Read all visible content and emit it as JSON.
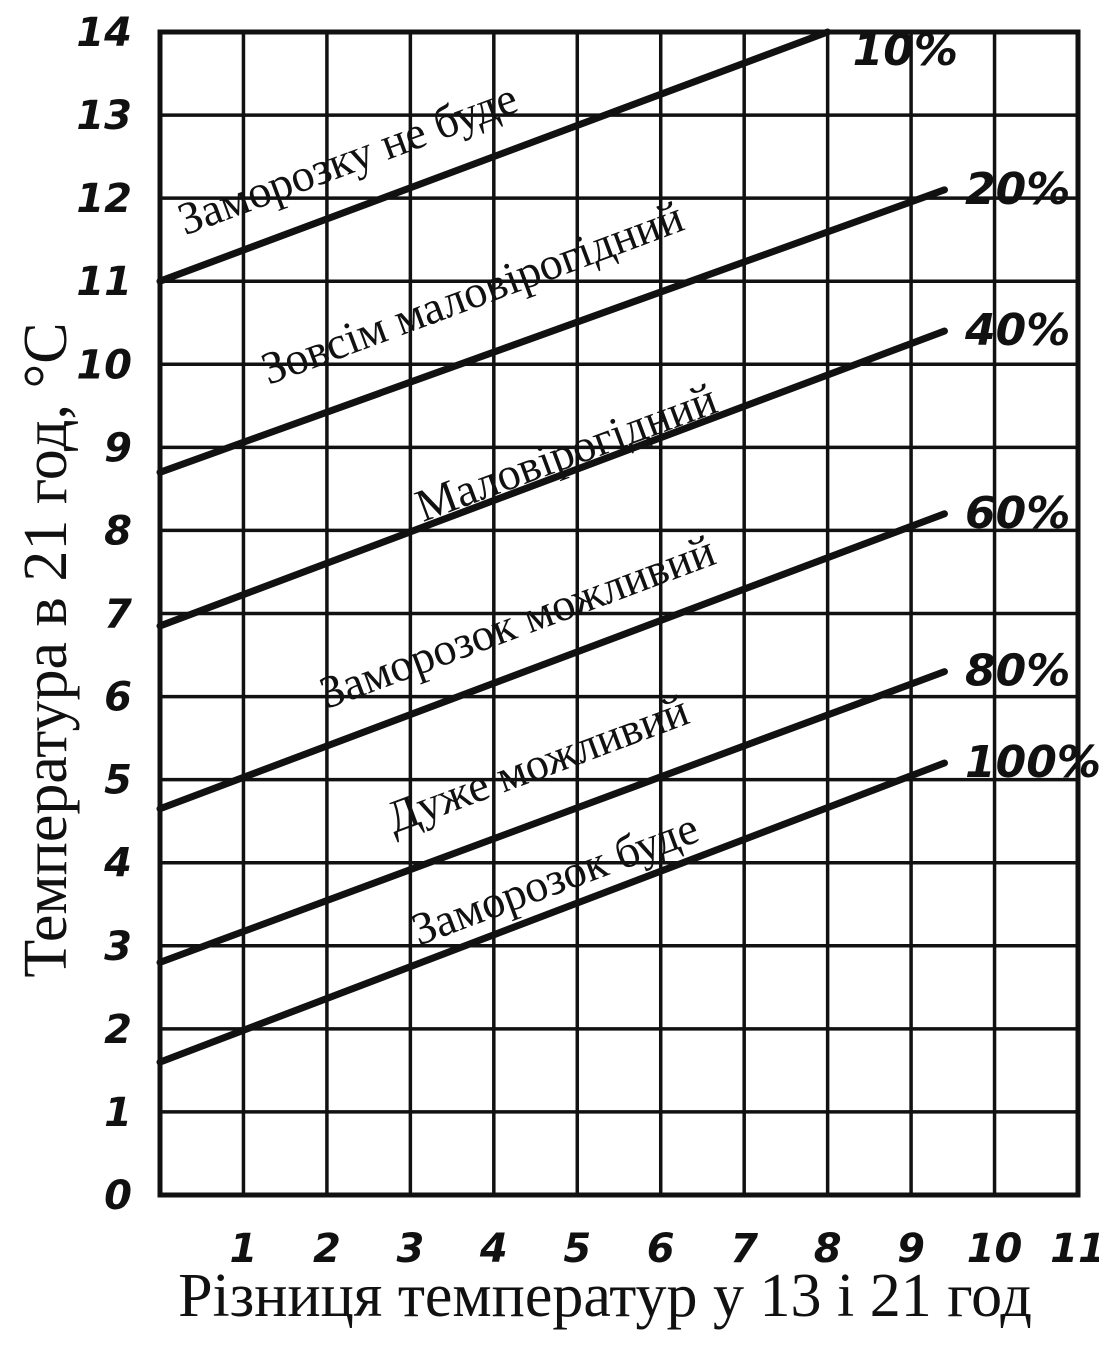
{
  "chart_data": {
    "type": "line",
    "xlabel": "Різниця температур у 13 і 21 год",
    "ylabel": "Температура в 21 год, °С",
    "x_ticks": [
      "1",
      "2",
      "3",
      "4",
      "5",
      "6",
      "7",
      "8",
      "9",
      "10",
      "11"
    ],
    "y_ticks": [
      "0",
      "1",
      "2",
      "3",
      "4",
      "5",
      "6",
      "7",
      "8",
      "9",
      "10",
      "11",
      "12",
      "13",
      "14"
    ],
    "xlim": [
      0,
      11
    ],
    "ylim": [
      0,
      14
    ],
    "grid": true,
    "series": [
      {
        "name": "10%",
        "x": [
          0,
          8
        ],
        "y": [
          11.0,
          14.0
        ]
      },
      {
        "name": "20%",
        "x": [
          0,
          9.4
        ],
        "y": [
          8.7,
          12.1
        ]
      },
      {
        "name": "40%",
        "x": [
          0,
          9.4
        ],
        "y": [
          6.85,
          10.4
        ]
      },
      {
        "name": "60%",
        "x": [
          0,
          9.4
        ],
        "y": [
          4.65,
          8.2
        ]
      },
      {
        "name": "80%",
        "x": [
          0,
          9.4
        ],
        "y": [
          2.8,
          6.3
        ]
      },
      {
        "name": "100%",
        "x": [
          0,
          9.4
        ],
        "y": [
          1.6,
          5.2
        ]
      }
    ],
    "zones": [
      {
        "label": "Заморозку не буде"
      },
      {
        "label": "Зовсім маловірогідний"
      },
      {
        "label": "Маловірогідний"
      },
      {
        "label": "Заморозок можливий"
      },
      {
        "label": "Дуже можливий"
      },
      {
        "label": "Заморозок буде"
      }
    ]
  }
}
